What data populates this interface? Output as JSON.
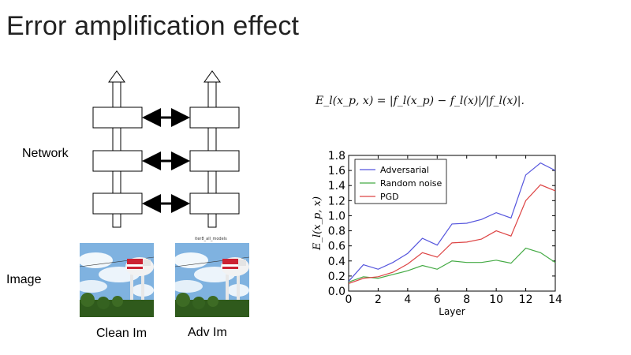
{
  "slide": {
    "title": "Error amplification effect",
    "label_network": "Network",
    "label_image": "Image",
    "caption_clean": "Clean Im",
    "caption_adv": "Adv Im",
    "adv_image_caption": "iter8_all_models",
    "formula": "E_l(x_p, x) = |f_l(x_p) − f_l(x)|/|f_l(x)|."
  },
  "chart_data": {
    "type": "line",
    "xlabel": "Layer",
    "ylabel": "E_l(x_p, x)",
    "xlim": [
      0,
      14
    ],
    "ylim": [
      0.0,
      1.8
    ],
    "xticks": [
      0,
      2,
      4,
      6,
      8,
      10,
      12,
      14
    ],
    "yticks": [
      0.0,
      0.2,
      0.4,
      0.6,
      0.8,
      1.0,
      1.2,
      1.4,
      1.6,
      1.8
    ],
    "x": [
      0,
      1,
      2,
      3,
      4,
      5,
      6,
      7,
      8,
      9,
      10,
      11,
      12,
      13,
      14
    ],
    "legend_position": "top-left",
    "series": [
      {
        "name": "Adversarial",
        "color": "#5555dd",
        "values": [
          0.13,
          0.35,
          0.29,
          0.38,
          0.5,
          0.7,
          0.61,
          0.89,
          0.9,
          0.95,
          1.04,
          0.97,
          1.54,
          1.7,
          1.6
        ]
      },
      {
        "name": "Random noise",
        "color": "#44aa44",
        "values": [
          0.12,
          0.19,
          0.17,
          0.22,
          0.27,
          0.34,
          0.29,
          0.4,
          0.38,
          0.38,
          0.41,
          0.37,
          0.57,
          0.51,
          0.38
        ]
      },
      {
        "name": "PGD",
        "color": "#dd4444",
        "values": [
          0.1,
          0.17,
          0.19,
          0.25,
          0.36,
          0.51,
          0.45,
          0.64,
          0.65,
          0.69,
          0.8,
          0.73,
          1.2,
          1.41,
          1.33
        ]
      }
    ]
  }
}
